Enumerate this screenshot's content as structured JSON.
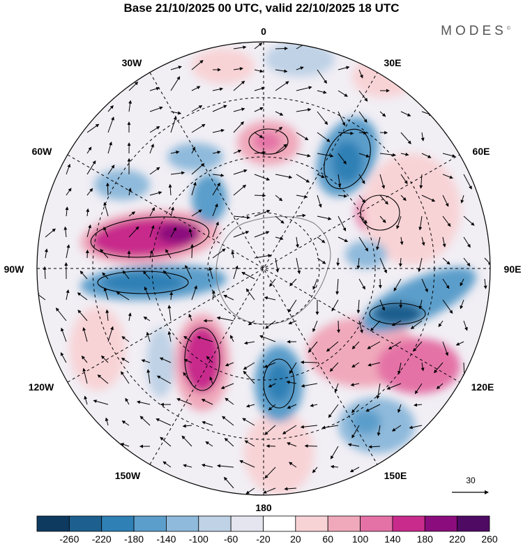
{
  "title": "Base 21/10/2025 00 UTC, valid 22/10/2025 18 UTC",
  "brand": "MODES",
  "brand_mark": "©",
  "longitude_labels": [
    "0",
    "30E",
    "60E",
    "90E",
    "120E",
    "150E",
    "180",
    "150W",
    "120W",
    "90W",
    "60W",
    "30W"
  ],
  "vector_reference": "30",
  "colorbar": {
    "ticks": [
      "-260",
      "-220",
      "-180",
      "-140",
      "-100",
      "-60",
      "-20",
      "20",
      "60",
      "100",
      "140",
      "180",
      "220",
      "260"
    ],
    "colors": [
      "#0e3a5f",
      "#1d5f8e",
      "#2f80b5",
      "#5c9ecb",
      "#8fbadb",
      "#bfd2e6",
      "#e5e5ef",
      "#ffffff",
      "#f8d3d6",
      "#f0a9bb",
      "#e472a6",
      "#c82b8c",
      "#8b0d7d",
      "#4f0a63"
    ]
  },
  "anomaly_blobs": [
    {
      "label": "neg",
      "color": "#2f80b5"
    },
    {
      "label": "neg",
      "color": "#5c9ecb"
    },
    {
      "label": "pos",
      "color": "#c82b8c"
    },
    {
      "label": "pos",
      "color": "#e472a6"
    }
  ]
}
